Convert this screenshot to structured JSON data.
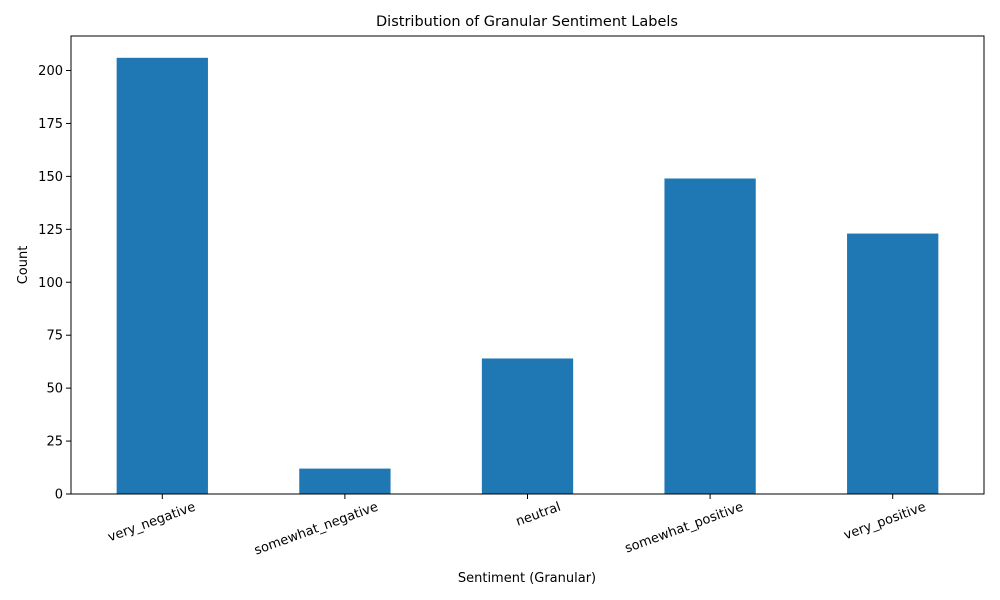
{
  "chart_data": {
    "type": "bar",
    "title": "Distribution of Granular Sentiment Labels",
    "xlabel": "Sentiment (Granular)",
    "ylabel": "Count",
    "categories": [
      "very_negative",
      "somewhat_negative",
      "neutral",
      "somewhat_positive",
      "very_positive"
    ],
    "values": [
      206,
      12,
      64,
      149,
      123
    ],
    "ylim": [
      0,
      216.3
    ],
    "yticks": [
      0,
      25,
      50,
      75,
      100,
      125,
      150,
      175,
      200
    ],
    "grid": false,
    "legend": "none",
    "bar_color": "#1f77b4"
  }
}
